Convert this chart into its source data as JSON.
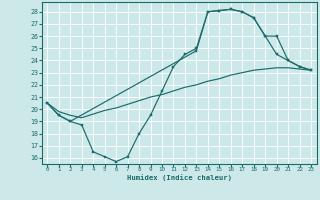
{
  "xlabel": "Humidex (Indice chaleur)",
  "bg_color": "#cce8e8",
  "grid_color": "#b0d8d8",
  "line_color": "#1a6b6b",
  "xlim": [
    -0.5,
    23.5
  ],
  "ylim": [
    15.5,
    28.8
  ],
  "xticks": [
    0,
    1,
    2,
    3,
    4,
    5,
    6,
    7,
    8,
    9,
    10,
    11,
    12,
    13,
    14,
    15,
    16,
    17,
    18,
    19,
    20,
    21,
    22,
    23
  ],
  "yticks": [
    16,
    17,
    18,
    19,
    20,
    21,
    22,
    23,
    24,
    25,
    26,
    27,
    28
  ],
  "line1_x": [
    0,
    1,
    2,
    3,
    4,
    5,
    6,
    7,
    8,
    9,
    10,
    11,
    12,
    13,
    14,
    15,
    16,
    17,
    18,
    19,
    20,
    21,
    22,
    23
  ],
  "line1_y": [
    20.5,
    19.5,
    19.0,
    18.7,
    16.5,
    16.1,
    15.7,
    16.1,
    18.0,
    19.5,
    21.5,
    23.5,
    24.5,
    25.0,
    28.0,
    28.1,
    28.2,
    28.0,
    27.5,
    26.0,
    24.5,
    24.0,
    23.5,
    23.2
  ],
  "line2_x": [
    0,
    1,
    2,
    3,
    4,
    5,
    6,
    7,
    8,
    9,
    10,
    11,
    12,
    13,
    14,
    15,
    16,
    17,
    18,
    19,
    20,
    21,
    22,
    23
  ],
  "line2_y": [
    20.5,
    19.8,
    19.5,
    19.3,
    19.6,
    19.9,
    20.1,
    20.4,
    20.7,
    21.0,
    21.2,
    21.5,
    21.8,
    22.0,
    22.3,
    22.5,
    22.8,
    23.0,
    23.2,
    23.3,
    23.4,
    23.4,
    23.3,
    23.2
  ],
  "line3_x": [
    0,
    1,
    2,
    13,
    14,
    15,
    16,
    17,
    18,
    19,
    20,
    21,
    22,
    23
  ],
  "line3_y": [
    20.5,
    19.5,
    19.0,
    24.8,
    28.0,
    28.1,
    28.2,
    28.0,
    27.5,
    26.0,
    26.0,
    24.0,
    23.5,
    23.2
  ]
}
